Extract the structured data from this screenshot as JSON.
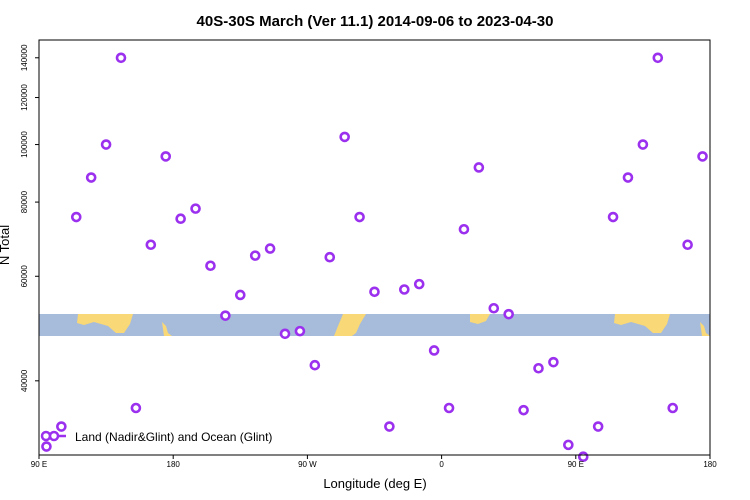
{
  "chart_data": {
    "type": "scatter",
    "title": "40S-30S March (Ver 11.1)   2014-09-06 to 2023-04-30",
    "xlabel": "Longitude (deg E)",
    "ylabel": "N Total",
    "x_tick_labels": [
      "90 E",
      "180",
      "90 W",
      "0",
      "90 E",
      "180"
    ],
    "y_tick_labels": [
      "40000",
      "60000",
      "80000",
      "100000",
      "120000",
      "140000"
    ],
    "y_ticks": [
      40000,
      60000,
      80000,
      100000,
      120000,
      140000
    ],
    "y_scale": "log",
    "ylim": [
      30000,
      150000
    ],
    "xlim": [
      90,
      540
    ],
    "marker_color": "#9b30ef",
    "legend": {
      "placement": "bottom-left",
      "entries": [
        "Land (Nadir&Glint) and Ocean (Glint)"
      ]
    },
    "map_strip": {
      "ocean_color": "#a7bbdb",
      "land_color": "#f8d877"
    },
    "series": [
      {
        "name": "Land (Nadir&Glint) and Ocean (Glint)",
        "x": [
          95,
          105,
          115,
          125,
          135,
          145,
          155,
          165,
          175,
          185,
          195,
          205,
          215,
          225,
          235,
          245,
          255,
          265,
          275,
          285,
          295,
          305,
          315,
          325,
          335,
          345,
          355,
          365,
          375,
          385,
          395,
          405,
          415,
          425,
          435,
          445,
          455,
          465,
          475,
          485,
          495,
          505,
          515,
          525,
          535
        ],
        "y": [
          31000,
          33500,
          75500,
          88000,
          100000,
          140000,
          36000,
          67800,
          95500,
          75000,
          78000,
          62500,
          51500,
          55800,
          65000,
          66800,
          48000,
          48500,
          42500,
          64600,
          103000,
          75500,
          56500,
          33500,
          57000,
          58200,
          45000,
          36000,
          72000,
          91500,
          53000,
          51800,
          35700,
          42000,
          43000,
          31200,
          29800,
          33500,
          75500,
          88000,
          100000,
          140000,
          36000,
          67800,
          95500
        ]
      }
    ]
  }
}
